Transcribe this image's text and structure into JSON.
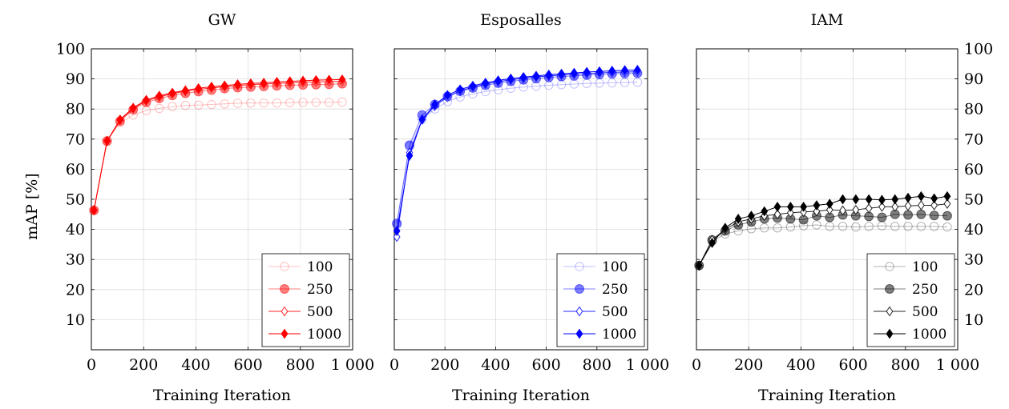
{
  "figure": {
    "ylabel": "mAP [%]",
    "xlabel": "Training Iteration"
  },
  "chart_data": [
    {
      "type": "line",
      "title": "GW",
      "xlabel": "Training Iteration",
      "ylabel": "mAP [%]",
      "xlim": [
        0,
        1000
      ],
      "ylim": [
        0,
        100
      ],
      "xticks": [
        0,
        200,
        400,
        600,
        800,
        1000
      ],
      "xtick_labels": [
        "0",
        "200",
        "400",
        "600",
        "800",
        "1 000"
      ],
      "yticks": [
        10,
        20,
        30,
        40,
        50,
        60,
        70,
        80,
        90,
        100
      ],
      "grid": true,
      "legend_position": "bottom-right",
      "color": "#ff0000",
      "x": [
        10,
        60,
        110,
        160,
        210,
        260,
        310,
        360,
        410,
        460,
        510,
        560,
        610,
        660,
        710,
        760,
        810,
        860,
        910,
        960
      ],
      "series": [
        {
          "name": "100",
          "marker": "circle-open",
          "opacity": 0.25,
          "values": [
            46.5,
            69.5,
            75.5,
            78.0,
            79.5,
            80.2,
            80.8,
            81.2,
            81.3,
            81.5,
            81.7,
            81.9,
            82.0,
            82.0,
            82.0,
            82.1,
            82.2,
            82.2,
            82.2,
            82.3
          ]
        },
        {
          "name": "250",
          "marker": "circle-filled",
          "opacity": 0.5,
          "values": [
            46.3,
            69.3,
            76.0,
            79.8,
            82.2,
            83.5,
            84.5,
            85.2,
            85.8,
            86.3,
            86.8,
            87.1,
            87.3,
            87.5,
            87.7,
            87.9,
            88.0,
            88.1,
            88.2,
            88.4
          ]
        },
        {
          "name": "500",
          "marker": "diamond-open",
          "opacity": 0.85,
          "values": [
            46.4,
            69.4,
            76.3,
            80.2,
            82.7,
            84.0,
            85.1,
            85.9,
            86.5,
            87.0,
            87.4,
            87.8,
            88.1,
            88.3,
            88.5,
            88.7,
            88.9,
            89.0,
            89.1,
            89.2
          ]
        },
        {
          "name": "1000",
          "marker": "diamond-filled",
          "opacity": 1,
          "values": [
            46.4,
            69.4,
            76.5,
            80.4,
            83.0,
            84.4,
            85.4,
            86.2,
            86.9,
            87.4,
            87.8,
            88.2,
            88.5,
            88.7,
            89.0,
            89.2,
            89.4,
            89.6,
            89.7,
            89.8
          ]
        }
      ]
    },
    {
      "type": "line",
      "title": "Esposalles",
      "xlabel": "Training Iteration",
      "xlim": [
        0,
        1000
      ],
      "ylim": [
        0,
        100
      ],
      "xticks": [
        0,
        200,
        400,
        600,
        800,
        1000
      ],
      "xtick_labels": [
        "0",
        "200",
        "400",
        "600",
        "800",
        "1 000"
      ],
      "yticks": [
        10,
        20,
        30,
        40,
        50,
        60,
        70,
        80,
        90,
        100
      ],
      "grid": true,
      "legend_position": "bottom-right",
      "color": "#0000ff",
      "x": [
        10,
        60,
        110,
        160,
        210,
        260,
        310,
        360,
        410,
        460,
        510,
        560,
        610,
        660,
        710,
        760,
        810,
        860,
        910,
        960
      ],
      "series": [
        {
          "name": "100",
          "marker": "circle-open",
          "opacity": 0.25,
          "values": [
            41.5,
            67.5,
            76.5,
            80.0,
            82.5,
            84.0,
            85.0,
            85.8,
            86.4,
            86.9,
            87.3,
            87.6,
            87.9,
            88.1,
            88.3,
            88.5,
            88.6,
            88.7,
            88.8,
            88.9
          ]
        },
        {
          "name": "250",
          "marker": "circle-filled",
          "opacity": 0.5,
          "values": [
            42.0,
            68.0,
            78.0,
            81.5,
            84.2,
            85.9,
            87.0,
            87.9,
            88.6,
            89.2,
            89.7,
            90.1,
            90.5,
            90.8,
            91.0,
            91.3,
            91.5,
            91.7,
            91.8,
            91.9
          ]
        },
        {
          "name": "500",
          "marker": "diamond-open",
          "opacity": 0.85,
          "values": [
            37.5,
            65.5,
            76.5,
            81.0,
            84.0,
            86.0,
            87.3,
            88.3,
            89.1,
            89.7,
            90.2,
            90.7,
            91.0,
            91.3,
            91.6,
            91.8,
            92.0,
            92.2,
            92.3,
            92.4
          ]
        },
        {
          "name": "1000",
          "marker": "diamond-filled",
          "opacity": 1,
          "values": [
            39.5,
            64.5,
            76.5,
            81.5,
            84.6,
            86.5,
            87.7,
            88.7,
            89.5,
            90.1,
            90.6,
            91.0,
            91.4,
            91.7,
            92.0,
            92.3,
            92.5,
            92.7,
            92.9,
            93.0
          ]
        }
      ]
    },
    {
      "type": "line",
      "title": "IAM",
      "xlabel": "Training Iteration",
      "xlim": [
        0,
        1000
      ],
      "ylim": [
        0,
        100
      ],
      "xticks": [
        0,
        200,
        400,
        600,
        800,
        1000
      ],
      "xtick_labels": [
        "0",
        "200",
        "400",
        "600",
        "800",
        "1 000"
      ],
      "yticks": [
        10,
        20,
        30,
        40,
        50,
        60,
        70,
        80,
        90,
        100
      ],
      "yaxis_side": "right",
      "grid": true,
      "legend_position": "bottom-right",
      "color": "#000000",
      "x": [
        10,
        60,
        110,
        160,
        210,
        260,
        310,
        360,
        410,
        460,
        510,
        560,
        610,
        660,
        710,
        760,
        810,
        860,
        910,
        960
      ],
      "series": [
        {
          "name": "100",
          "marker": "circle-open",
          "opacity": 0.3,
          "values": [
            28.0,
            36.0,
            38.5,
            39.5,
            40.2,
            40.5,
            40.5,
            40.8,
            41.2,
            41.5,
            41.0,
            41.0,
            40.8,
            41.0,
            41.2,
            41.0,
            41.0,
            41.0,
            41.0,
            40.8
          ]
        },
        {
          "name": "250",
          "marker": "circle-filled",
          "opacity": 0.5,
          "values": [
            28.0,
            36.5,
            39.5,
            41.5,
            42.5,
            43.5,
            43.8,
            43.5,
            43.2,
            44.5,
            44.0,
            44.8,
            44.5,
            44.3,
            44.0,
            45.0,
            44.8,
            45.0,
            44.6,
            44.5
          ]
        },
        {
          "name": "500",
          "marker": "diamond-open",
          "opacity": 0.85,
          "values": [
            28.0,
            36.5,
            40.0,
            42.5,
            43.5,
            44.5,
            45.0,
            45.5,
            45.8,
            46.0,
            46.5,
            46.3,
            46.5,
            47.0,
            47.5,
            47.5,
            47.8,
            48.0,
            48.0,
            48.5
          ]
        },
        {
          "name": "1000",
          "marker": "diamond-filled",
          "opacity": 1,
          "values": [
            28.0,
            35.5,
            40.5,
            43.5,
            44.5,
            46.0,
            47.5,
            47.5,
            47.5,
            48.0,
            48.5,
            50.0,
            50.0,
            50.0,
            49.8,
            50.0,
            50.5,
            51.0,
            50.3,
            51.0
          ]
        }
      ]
    }
  ]
}
